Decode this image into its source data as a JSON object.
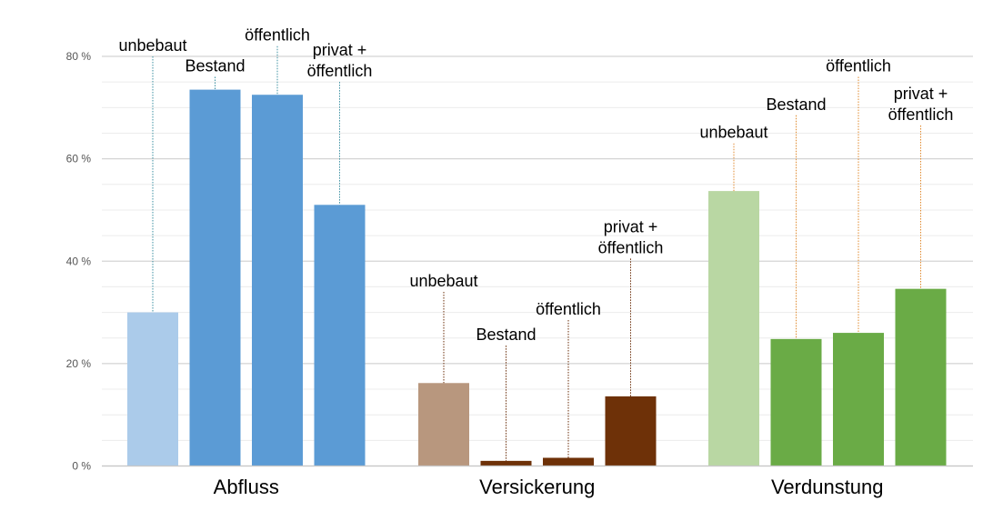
{
  "chart_data": {
    "type": "bar",
    "title": "",
    "xlabel": "",
    "ylabel": "",
    "ylim": [
      0,
      80
    ],
    "yticks": [
      {
        "value": 0,
        "label": "0 %"
      },
      {
        "value": 20,
        "label": "20 %"
      },
      {
        "value": 40,
        "label": "40 %"
      },
      {
        "value": 60,
        "label": "60 %"
      },
      {
        "value": 80,
        "label": "80 %"
      }
    ],
    "minor_grid_step": 5,
    "grid": true,
    "legend": "none",
    "groups": [
      {
        "category": "Abfluss",
        "leader_color": "#3a8fa0",
        "bars": [
          {
            "label": [
              "unbebaut"
            ],
            "value": 30,
            "color": "#abcbea",
            "label_level": 80
          },
          {
            "label": [
              "Bestand"
            ],
            "value": 73.5,
            "color": "#5b9bd5",
            "label_level": 76
          },
          {
            "label": [
              "öffentlich"
            ],
            "value": 72.5,
            "color": "#5b9bd5",
            "label_level": 82
          },
          {
            "label": [
              "privat +",
              "öffentlich"
            ],
            "value": 51,
            "color": "#5b9bd5",
            "label_level": 75
          }
        ]
      },
      {
        "category": "Versickerung",
        "leader_color": "#6b2e0a",
        "bars": [
          {
            "label": [
              "unbebaut"
            ],
            "value": 16.2,
            "color": "#b8977e",
            "label_level": 34
          },
          {
            "label": [
              "Bestand"
            ],
            "value": 1,
            "color": "#6e3108",
            "label_level": 23.5
          },
          {
            "label": [
              "öffentlich"
            ],
            "value": 1.6,
            "color": "#6e3108",
            "label_level": 28.5
          },
          {
            "label": [
              "privat +",
              "öffentlich"
            ],
            "value": 13.6,
            "color": "#6e3108",
            "label_level": 40.5
          }
        ]
      },
      {
        "category": "Verdunstung",
        "leader_color": "#e0892e",
        "bars": [
          {
            "label": [
              "unbebaut"
            ],
            "value": 53.7,
            "color": "#b9d7a3",
            "label_level": 63
          },
          {
            "label": [
              "Bestand"
            ],
            "value": 24.8,
            "color": "#6aab46",
            "label_level": 68.5
          },
          {
            "label": [
              "öffentlich"
            ],
            "value": 26,
            "color": "#6aab46",
            "label_level": 76
          },
          {
            "label": [
              "privat +",
              "öffentlich"
            ],
            "value": 34.6,
            "color": "#6aab46",
            "label_level": 66.5
          }
        ]
      }
    ]
  }
}
